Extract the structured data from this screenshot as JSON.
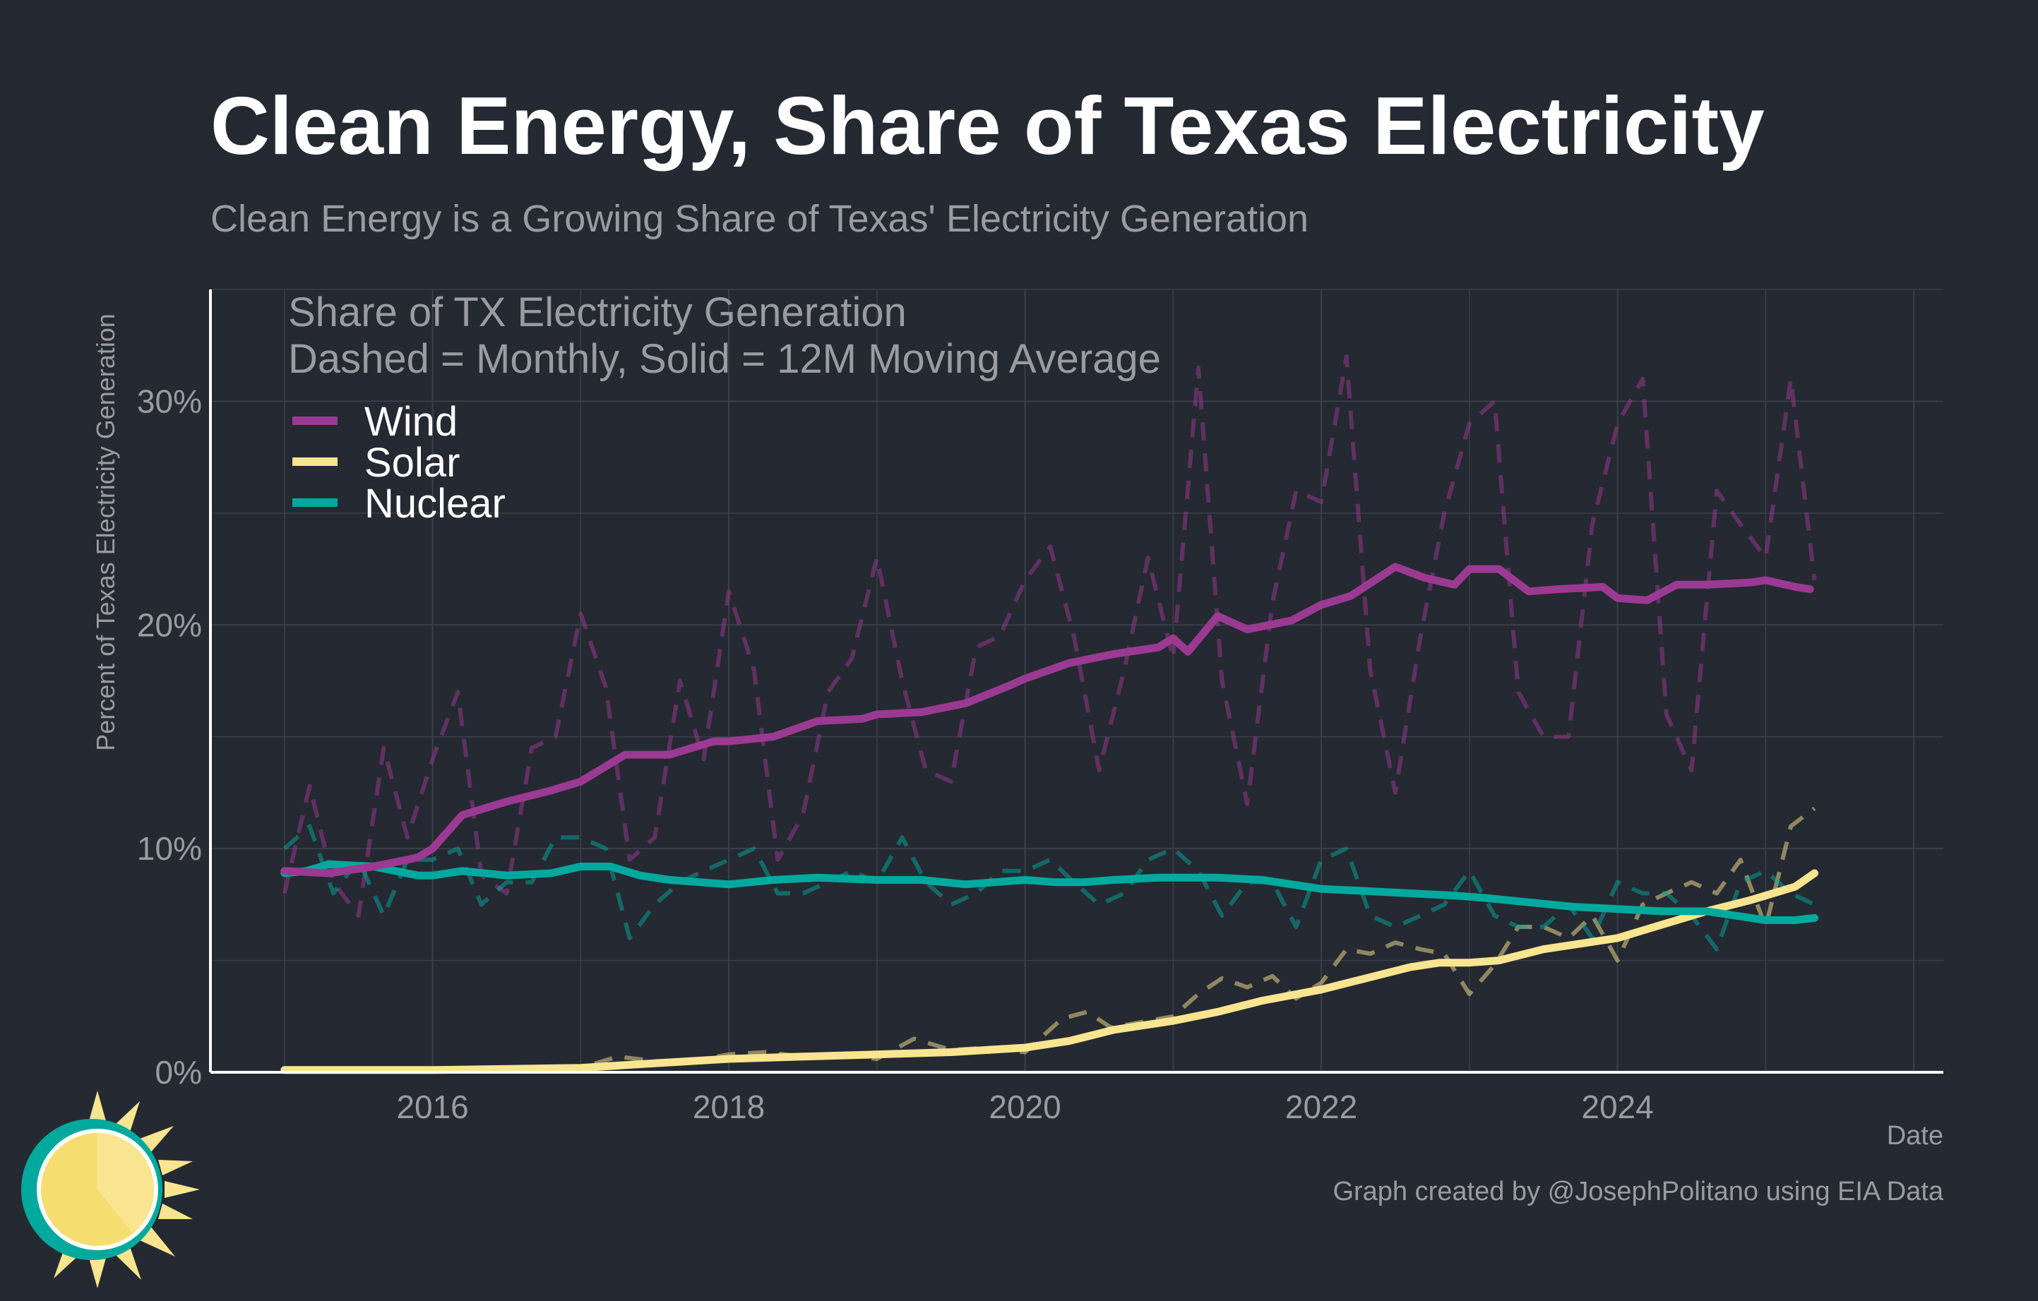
{
  "title": "Clean Energy, Share of Texas Electricity",
  "subtitle": "Clean Energy is a Growing Share of Texas' Electricity Generation",
  "caption": "Graph created by @JosephPolitano using EIA Data",
  "logo_icon": "sun-logo-icon",
  "colors": {
    "background": "#252932",
    "grid": "#3b3f48",
    "axis": "#ffffff",
    "title": "#ffffff",
    "muted": "#9a9ca2",
    "wind": "#9b3a92",
    "solar": "#f9e58f",
    "nuclear": "#00a99d"
  },
  "chart_data": {
    "type": "line",
    "note_line1": "Share of TX Electricity Generation",
    "note_line2": "Dashed = Monthly, Solid = 12M Moving Average",
    "xlabel": "Date",
    "ylabel": "Percent of Texas Electricity Generation",
    "xlim": [
      2014.5,
      2026.2
    ],
    "ylim": [
      0,
      35
    ],
    "x_ticks": [
      2016,
      2018,
      2020,
      2022,
      2024
    ],
    "x_tick_labels": [
      "2016",
      "2018",
      "2020",
      "2022",
      "2024"
    ],
    "y_ticks": [
      0,
      10,
      20,
      30
    ],
    "y_tick_labels": [
      "0%",
      "10%",
      "20%",
      "30%"
    ],
    "grid": true,
    "legend_position": "top-left",
    "series": [
      {
        "name": "Wind",
        "color": "#9b3a92",
        "ma_x": [
          2015.0,
          2015.3,
          2015.6,
          2015.9,
          2016.0,
          2016.2,
          2016.5,
          2016.8,
          2017.0,
          2017.3,
          2017.6,
          2017.9,
          2018.0,
          2018.3,
          2018.6,
          2018.9,
          2019.0,
          2019.3,
          2019.6,
          2019.9,
          2020.0,
          2020.3,
          2020.6,
          2020.9,
          2021.0,
          2021.1,
          2021.3,
          2021.5,
          2021.8,
          2022.0,
          2022.2,
          2022.5,
          2022.7,
          2022.9,
          2023.0,
          2023.2,
          2023.4,
          2023.6,
          2023.9,
          2024.0,
          2024.2,
          2024.4,
          2024.6,
          2024.9,
          2025.0,
          2025.2,
          2025.3
        ],
        "ma_y": [
          9.0,
          8.9,
          9.2,
          9.6,
          10.0,
          11.5,
          12.1,
          12.6,
          13.0,
          14.2,
          14.2,
          14.8,
          14.8,
          15.0,
          15.7,
          15.8,
          16.0,
          16.1,
          16.5,
          17.3,
          17.6,
          18.3,
          18.7,
          19.0,
          19.4,
          18.8,
          20.4,
          19.8,
          20.2,
          20.9,
          21.3,
          22.6,
          22.1,
          21.8,
          22.5,
          22.5,
          21.5,
          21.6,
          21.7,
          21.2,
          21.1,
          21.8,
          21.8,
          21.9,
          22.0,
          21.7,
          21.6
        ],
        "monthly_x": [
          2015.0,
          2015.17,
          2015.33,
          2015.5,
          2015.67,
          2015.83,
          2016.0,
          2016.17,
          2016.33,
          2016.5,
          2016.67,
          2016.83,
          2017.0,
          2017.17,
          2017.33,
          2017.5,
          2017.67,
          2017.83,
          2018.0,
          2018.17,
          2018.33,
          2018.5,
          2018.67,
          2018.83,
          2019.0,
          2019.17,
          2019.33,
          2019.5,
          2019.67,
          2019.83,
          2020.0,
          2020.17,
          2020.33,
          2020.5,
          2020.67,
          2020.83,
          2021.0,
          2021.17,
          2021.33,
          2021.5,
          2021.67,
          2021.83,
          2022.0,
          2022.17,
          2022.33,
          2022.5,
          2022.67,
          2022.83,
          2023.0,
          2023.17,
          2023.33,
          2023.5,
          2023.67,
          2023.83,
          2024.0,
          2024.17,
          2024.33,
          2024.5,
          2024.67,
          2024.83,
          2025.0,
          2025.17,
          2025.33
        ],
        "monthly_y": [
          8.0,
          12.8,
          8.5,
          7.0,
          14.5,
          10.5,
          14.0,
          17.0,
          8.8,
          8.0,
          14.5,
          15.0,
          20.5,
          17.2,
          9.5,
          10.5,
          17.5,
          14.0,
          21.5,
          18.0,
          9.5,
          11.5,
          17.0,
          18.5,
          23.0,
          17.5,
          13.5,
          13.0,
          19.0,
          19.5,
          22.0,
          23.5,
          19.5,
          13.5,
          18.0,
          23.0,
          18.5,
          31.5,
          17.5,
          12.0,
          21.0,
          26.0,
          25.5,
          32.0,
          18.0,
          12.5,
          19.5,
          25.0,
          29.0,
          30.0,
          17.0,
          15.0,
          15.0,
          24.5,
          29.0,
          31.0,
          16.0,
          13.5,
          26.0,
          24.5,
          23.0,
          31.0,
          22.0
        ]
      },
      {
        "name": "Solar",
        "color": "#f9e58f",
        "ma_x": [
          2015.0,
          2016.0,
          2017.0,
          2017.5,
          2018.0,
          2018.5,
          2019.0,
          2019.5,
          2020.0,
          2020.3,
          2020.6,
          2021.0,
          2021.3,
          2021.6,
          2022.0,
          2022.3,
          2022.6,
          2022.8,
          2023.0,
          2023.2,
          2023.5,
          2023.8,
          2024.0,
          2024.3,
          2024.6,
          2024.9,
          2025.0,
          2025.2,
          2025.33
        ],
        "ma_y": [
          0.1,
          0.1,
          0.2,
          0.4,
          0.6,
          0.7,
          0.8,
          0.9,
          1.1,
          1.4,
          1.9,
          2.3,
          2.7,
          3.2,
          3.7,
          4.2,
          4.7,
          4.9,
          4.9,
          5.0,
          5.5,
          5.8,
          6.0,
          6.6,
          7.2,
          7.7,
          7.9,
          8.3,
          8.9
        ],
        "monthly_x": [
          2015.0,
          2016.0,
          2016.67,
          2017.0,
          2017.25,
          2017.5,
          2017.75,
          2018.0,
          2018.25,
          2018.5,
          2018.75,
          2019.0,
          2019.25,
          2019.5,
          2019.75,
          2020.0,
          2020.25,
          2020.42,
          2020.58,
          2020.75,
          2021.0,
          2021.17,
          2021.33,
          2021.5,
          2021.67,
          2021.83,
          2022.0,
          2022.17,
          2022.33,
          2022.5,
          2022.67,
          2022.83,
          2023.0,
          2023.17,
          2023.33,
          2023.5,
          2023.67,
          2023.83,
          2024.0,
          2024.17,
          2024.33,
          2024.5,
          2024.67,
          2024.83,
          2025.0,
          2025.17,
          2025.33
        ],
        "monthly_y": [
          0.1,
          0.1,
          0.2,
          0.2,
          0.7,
          0.5,
          0.5,
          0.8,
          0.9,
          0.7,
          0.8,
          0.6,
          1.5,
          1.0,
          1.1,
          0.9,
          2.4,
          2.7,
          2.0,
          2.2,
          2.5,
          3.5,
          4.2,
          3.8,
          4.3,
          3.3,
          4.0,
          5.5,
          5.3,
          5.8,
          5.5,
          5.3,
          3.5,
          4.8,
          6.5,
          6.5,
          6.0,
          7.0,
          5.0,
          7.5,
          8.0,
          8.5,
          8.0,
          9.5,
          6.5,
          11.0,
          11.8
        ]
      },
      {
        "name": "Nuclear",
        "color": "#00a99d",
        "ma_x": [
          2015.0,
          2015.15,
          2015.3,
          2015.6,
          2015.9,
          2016.0,
          2016.2,
          2016.5,
          2016.8,
          2017.0,
          2017.2,
          2017.4,
          2017.6,
          2018.0,
          2018.3,
          2018.6,
          2019.0,
          2019.3,
          2019.6,
          2020.0,
          2020.2,
          2020.4,
          2020.6,
          2020.9,
          2021.0,
          2021.3,
          2021.6,
          2021.9,
          2022.0,
          2022.3,
          2022.6,
          2022.9,
          2023.1,
          2023.4,
          2023.7,
          2024.0,
          2024.3,
          2024.6,
          2024.8,
          2025.0,
          2025.2,
          2025.33
        ],
        "ma_y": [
          8.9,
          9.0,
          9.3,
          9.2,
          8.8,
          8.8,
          9.0,
          8.8,
          8.9,
          9.2,
          9.2,
          8.8,
          8.6,
          8.4,
          8.6,
          8.7,
          8.6,
          8.6,
          8.4,
          8.6,
          8.5,
          8.5,
          8.6,
          8.7,
          8.7,
          8.7,
          8.6,
          8.3,
          8.2,
          8.1,
          8.0,
          7.9,
          7.8,
          7.6,
          7.4,
          7.3,
          7.2,
          7.2,
          7.0,
          6.8,
          6.8,
          6.9
        ],
        "monthly_x": [
          2015.0,
          2015.17,
          2015.33,
          2015.5,
          2015.67,
          2015.83,
          2016.0,
          2016.17,
          2016.33,
          2016.5,
          2016.67,
          2016.83,
          2017.0,
          2017.17,
          2017.33,
          2017.5,
          2017.67,
          2017.83,
          2018.0,
          2018.17,
          2018.33,
          2018.5,
          2018.67,
          2018.83,
          2019.0,
          2019.17,
          2019.33,
          2019.5,
          2019.67,
          2019.83,
          2020.0,
          2020.17,
          2020.33,
          2020.5,
          2020.67,
          2020.83,
          2021.0,
          2021.17,
          2021.33,
          2021.5,
          2021.67,
          2021.83,
          2022.0,
          2022.17,
          2022.33,
          2022.5,
          2022.67,
          2022.83,
          2023.0,
          2023.17,
          2023.33,
          2023.5,
          2023.67,
          2023.83,
          2024.0,
          2024.17,
          2024.33,
          2024.5,
          2024.67,
          2024.83,
          2025.0,
          2025.17,
          2025.33
        ],
        "monthly_y": [
          10.0,
          11.0,
          8.0,
          9.5,
          7.0,
          9.5,
          9.5,
          10.0,
          7.5,
          8.5,
          8.5,
          10.5,
          10.5,
          10.0,
          6.0,
          7.5,
          8.5,
          9.0,
          9.5,
          10.0,
          8.0,
          8.0,
          8.5,
          9.0,
          8.5,
          10.5,
          8.5,
          7.5,
          8.0,
          9.0,
          9.0,
          9.5,
          8.5,
          7.5,
          8.0,
          9.5,
          10.0,
          9.0,
          7.0,
          8.5,
          8.5,
          6.5,
          9.5,
          10.0,
          7.0,
          6.5,
          7.0,
          7.5,
          9.0,
          7.0,
          6.5,
          6.5,
          7.5,
          6.0,
          8.5,
          8.0,
          8.0,
          7.0,
          5.5,
          8.5,
          9.0,
          8.0,
          7.5
        ]
      }
    ]
  }
}
